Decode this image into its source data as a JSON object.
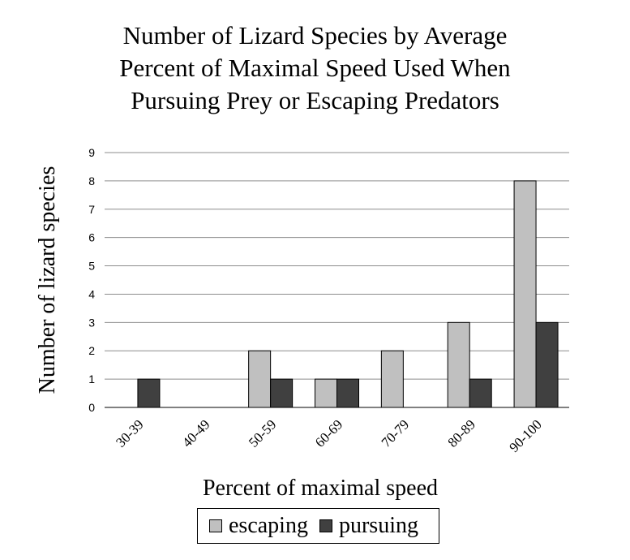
{
  "chart_data": {
    "type": "bar",
    "title_lines": [
      "Number of Lizard Species by Average",
      "Percent of Maximal Speed Used When",
      "Pursuing Prey or Escaping Predators"
    ],
    "xlabel": "Percent of maximal speed",
    "ylabel": "Number of lizard species",
    "categories": [
      "30-39",
      "40-49",
      "50-59",
      "60-69",
      "70-79",
      "80-89",
      "90-100"
    ],
    "series": [
      {
        "name": "escaping",
        "color": "#c0c0c0",
        "values": [
          0,
          0,
          2,
          1,
          2,
          3,
          8
        ]
      },
      {
        "name": "pursuing",
        "color": "#404040",
        "values": [
          1,
          0,
          1,
          1,
          0,
          1,
          3
        ]
      }
    ],
    "ylim": [
      0,
      9
    ],
    "yticks": [
      "0",
      "1",
      "2",
      "3",
      "4",
      "5",
      "6",
      "7",
      "8",
      "9"
    ],
    "grid": true,
    "legend_position": "bottom"
  }
}
